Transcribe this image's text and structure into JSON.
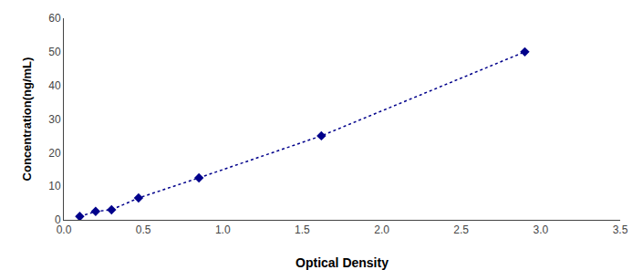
{
  "chart_data": {
    "type": "line",
    "x": [
      0.1,
      0.2,
      0.3,
      0.47,
      0.85,
      1.62,
      2.9
    ],
    "values": [
      1.0,
      2.5,
      3.0,
      6.5,
      12.5,
      25.0,
      50.0
    ],
    "color": "#00008B",
    "marker": "diamond",
    "line_style": "dotted",
    "xlabel": "Optical Density",
    "ylabel": "Concentration(ng/mL)",
    "xlim": [
      0,
      3.5
    ],
    "ylim": [
      0,
      60
    ],
    "xticks": [
      {
        "value": 0,
        "label": "0.0"
      },
      0.5,
      {
        "value": 1.0,
        "label": "1.0"
      },
      1.5,
      {
        "value": 2.0,
        "label": "2.0"
      },
      2.5,
      {
        "value": 3.0,
        "label": "3.0"
      },
      3.5
    ],
    "yticks": [
      0,
      10,
      20,
      30,
      40,
      50,
      60
    ],
    "grid": false
  }
}
